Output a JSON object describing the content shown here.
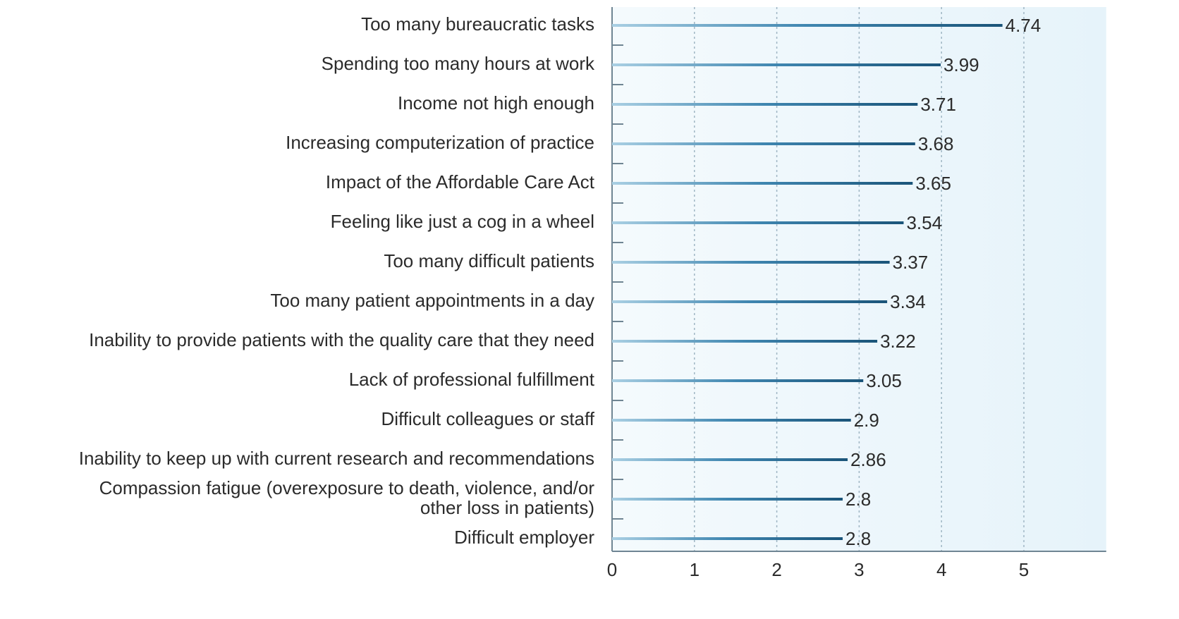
{
  "chart_data": {
    "type": "bar",
    "orientation": "horizontal",
    "categories": [
      "Too many bureaucratic tasks",
      "Spending too many hours at work",
      "Income not high enough",
      "Increasing computerization of practice",
      "Impact of the Affordable Care Act",
      "Feeling like just a cog in a wheel",
      "Too many difficult patients",
      "Too many patient appointments in a day",
      "Inability to provide patients with the quality care that they need",
      "Lack of professional fulfillment",
      "Difficult colleagues or staff",
      "Inability to keep up with current research and recommendations",
      "Compassion fatigue (overexposure to death, violence, and/or other loss in patients)",
      "Difficult employer"
    ],
    "values": [
      4.74,
      3.99,
      3.71,
      3.68,
      3.65,
      3.54,
      3.37,
      3.34,
      3.22,
      3.05,
      2.9,
      2.86,
      2.8,
      2.8
    ],
    "color": "#1f5f86",
    "xlim": [
      0,
      6
    ],
    "xticks": [
      0,
      1,
      2,
      3,
      4,
      5
    ],
    "grid": true
  }
}
